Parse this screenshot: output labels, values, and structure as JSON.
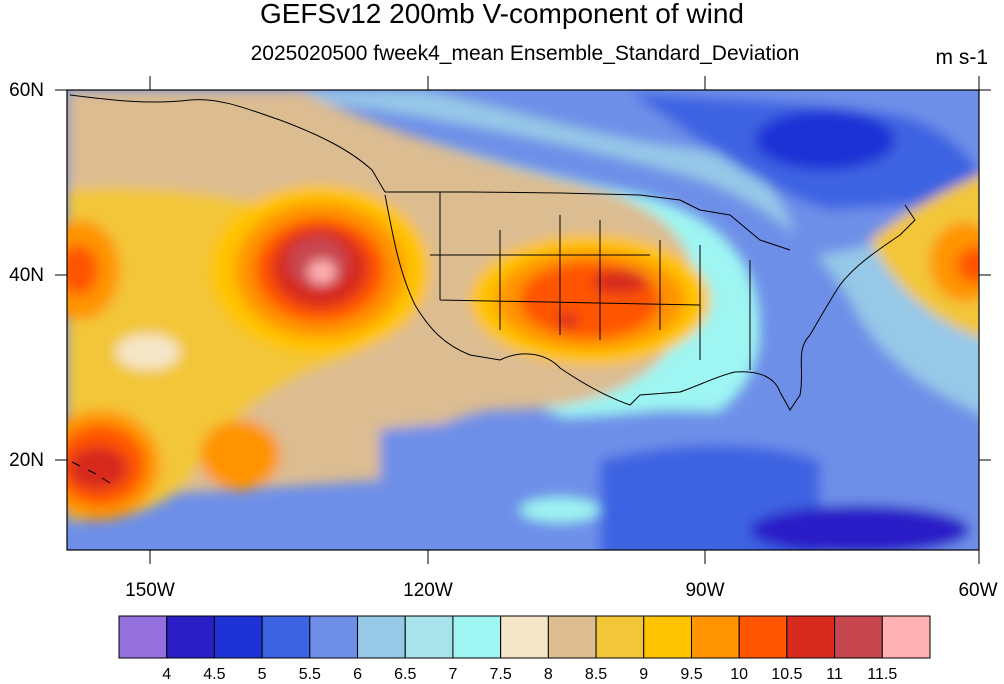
{
  "title": "GEFSv12 200mb V-component of wind",
  "subtitle": "2025020500 fweek4_mean Ensemble_Standard_Deviation",
  "units": "m s-1",
  "lat_labels": [
    "60N",
    "40N",
    "20N"
  ],
  "lon_labels": [
    "150W",
    "120W",
    "90W",
    "60W"
  ],
  "colorbar": {
    "labels": [
      "4",
      "4.5",
      "5",
      "5.5",
      "6",
      "6.5",
      "7",
      "7.5",
      "8",
      "8.5",
      "9",
      "9.5",
      "10",
      "10.5",
      "11",
      "11.5"
    ],
    "colors": [
      "#9370db",
      "#2a1fc7",
      "#1e32d6",
      "#3c64e2",
      "#6e8fe8",
      "#96c8e8",
      "#a8e3ec",
      "#9ef5f2",
      "#f5e6c8",
      "#dcbc91",
      "#f2c638",
      "#ffc300",
      "#ff9400",
      "#ff5400",
      "#d72b1e",
      "#c8464f",
      "#ffb1b4"
    ]
  }
}
